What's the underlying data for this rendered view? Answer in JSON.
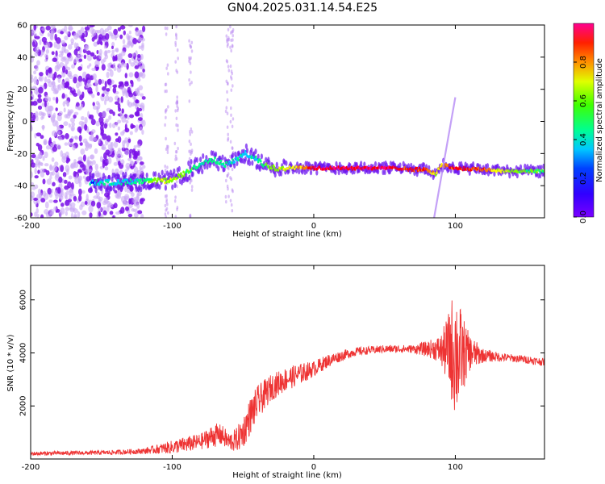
{
  "title": "GN04.2025.031.14.54.E25",
  "chart_data": [
    {
      "type": "heatmap",
      "xlabel": "Height of straight line (km)",
      "ylabel": "Frequency (Hz)",
      "xlim": [
        -200,
        163
      ],
      "ylim": [
        -60,
        60
      ],
      "x_ticks": [
        -200,
        -100,
        0,
        100
      ],
      "y_ticks": [
        -60,
        -40,
        -20,
        0,
        20,
        40,
        60
      ],
      "colorbar": {
        "label": "Normalized spectral amplitude",
        "range": [
          0,
          1
        ],
        "ticks": [
          0.0,
          0.2,
          0.4,
          0.6,
          0.8
        ],
        "colormap": [
          "#6a00ff",
          "#0000ff",
          "#00c8ff",
          "#00ff80",
          "#80ff00",
          "#ffff00",
          "#ff8000",
          "#ff0000",
          "#ff0080"
        ]
      },
      "ridge": {
        "x": [
          -158,
          -140,
          -125,
          -110,
          -100,
          -92,
          -85,
          -78,
          -70,
          -62,
          -55,
          -48,
          -42,
          -35,
          -28,
          -20,
          -10,
          0,
          20,
          40,
          60,
          70,
          80,
          86,
          90,
          100,
          120,
          140,
          163
        ],
        "y": [
          -38,
          -38,
          -37.5,
          -37,
          -36.5,
          -33,
          -29,
          -26,
          -24,
          -27,
          -24,
          -20,
          -23,
          -27,
          -29,
          -29,
          -28.5,
          -29,
          -29,
          -29,
          -29,
          -30,
          -30,
          -33,
          -27,
          -29,
          -30,
          -31,
          -31
        ],
        "amplitude": [
          0.25,
          0.3,
          0.35,
          0.5,
          0.55,
          0.45,
          0.4,
          0.35,
          0.35,
          0.3,
          0.3,
          0.25,
          0.3,
          0.4,
          0.55,
          0.6,
          0.65,
          0.9,
          0.95,
          0.95,
          0.9,
          0.85,
          0.8,
          0.6,
          0.7,
          0.9,
          0.75,
          0.5,
          0.4
        ]
      },
      "line_feature": {
        "x": [
          85,
          100
        ],
        "y": [
          -60,
          15
        ]
      },
      "noise_region_x": [
        -200,
        -120
      ]
    },
    {
      "type": "line",
      "xlabel": "Height of straight line (km)",
      "ylabel": "SNR (10 * v/v)",
      "xlim": [
        -200,
        163
      ],
      "ylim": [
        0,
        7300
      ],
      "x_ticks": [
        -200,
        -100,
        0,
        100
      ],
      "y_ticks": [
        2000,
        4000,
        6000
      ],
      "color": "#ee3333",
      "series": [
        {
          "x": [
            -200,
            -180,
            -160,
            -140,
            -120,
            -100,
            -90,
            -80,
            -70,
            -65,
            -60,
            -55,
            -50,
            -45,
            -40,
            -30,
            -20,
            -10,
            0,
            10,
            20,
            30,
            40,
            50,
            60,
            70,
            80,
            85,
            90,
            95,
            100,
            102,
            105,
            110,
            120,
            130,
            140,
            150,
            163
          ],
          "y": [
            200,
            220,
            230,
            250,
            300,
            450,
            550,
            650,
            900,
            900,
            650,
            700,
            1000,
            1600,
            2100,
            2700,
            3000,
            3200,
            3400,
            3700,
            3900,
            4050,
            4100,
            4150,
            4150,
            4150,
            4150,
            4150,
            4100,
            4100,
            4100,
            3900,
            3950,
            4000,
            3900,
            3850,
            3800,
            3750,
            3650
          ],
          "amp": [
            80,
            80,
            80,
            90,
            110,
            250,
            300,
            300,
            450,
            400,
            350,
            450,
            600,
            700,
            650,
            500,
            450,
            400,
            300,
            250,
            200,
            160,
            150,
            150,
            150,
            150,
            300,
            400,
            600,
            1400,
            2600,
            2200,
            1500,
            700,
            250,
            180,
            150,
            150,
            150
          ]
        }
      ]
    }
  ]
}
